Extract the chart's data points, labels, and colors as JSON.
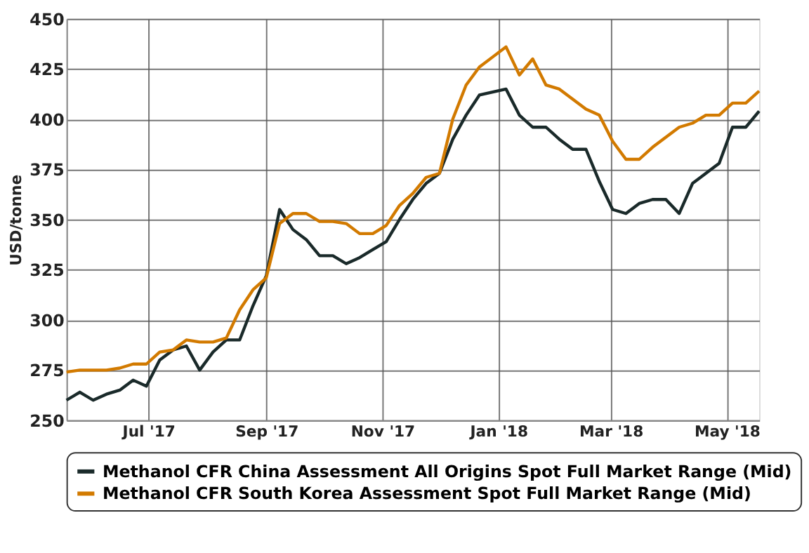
{
  "chart_data": {
    "type": "line",
    "ylabel": "USD/tonne",
    "x": [
      "2017-05-19",
      "2017-05-26",
      "2017-06-02",
      "2017-06-09",
      "2017-06-16",
      "2017-06-23",
      "2017-06-30",
      "2017-07-07",
      "2017-07-14",
      "2017-07-21",
      "2017-07-28",
      "2017-08-04",
      "2017-08-11",
      "2017-08-18",
      "2017-08-25",
      "2017-09-01",
      "2017-09-08",
      "2017-09-15",
      "2017-09-22",
      "2017-09-29",
      "2017-10-06",
      "2017-10-13",
      "2017-10-20",
      "2017-10-27",
      "2017-11-03",
      "2017-11-10",
      "2017-11-17",
      "2017-11-24",
      "2017-12-01",
      "2017-12-08",
      "2017-12-15",
      "2017-12-22",
      "2017-12-29",
      "2018-01-05",
      "2018-01-12",
      "2018-01-19",
      "2018-01-26",
      "2018-02-02",
      "2018-02-09",
      "2018-02-16",
      "2018-02-23",
      "2018-03-02",
      "2018-03-09",
      "2018-03-16",
      "2018-03-23",
      "2018-03-30",
      "2018-04-06",
      "2018-04-13",
      "2018-04-20",
      "2018-04-27",
      "2018-05-04",
      "2018-05-11",
      "2018-05-18"
    ],
    "series": [
      {
        "name": "Methanol CFR China Assessment All Origins Spot Full Market Range (Mid)",
        "color": "#1a2a2a",
        "values": [
          260,
          264,
          260,
          263,
          265,
          270,
          267,
          280,
          285,
          287,
          275,
          284,
          290,
          290,
          307,
          322,
          355,
          345,
          340,
          332,
          332,
          328,
          331,
          335,
          339,
          350,
          360,
          368,
          373,
          390,
          402,
          412,
          413.5,
          415,
          402,
          396,
          396,
          390,
          385,
          385,
          369,
          355,
          353,
          358,
          360,
          360,
          353,
          368,
          373,
          378,
          396,
          396,
          404
        ]
      },
      {
        "name": "Methanol CFR South Korea Assessment Spot Full Market Range (Mid)",
        "color": "#d27a00",
        "values": [
          274,
          275,
          275,
          275,
          276,
          278,
          278,
          284,
          285,
          290,
          289,
          289,
          291,
          305,
          315,
          321,
          348,
          353,
          353,
          349,
          349,
          348,
          343,
          343,
          347,
          357,
          363,
          371,
          373,
          400,
          417,
          426,
          431,
          436,
          422,
          430,
          417,
          415,
          410,
          405,
          402,
          389,
          380,
          380,
          386,
          391,
          396,
          398,
          402,
          402,
          408,
          408,
          414
        ]
      }
    ],
    "xlim": [
      "2017-05-19",
      "2018-05-18"
    ],
    "xticks": [
      {
        "value": "2017-07-01",
        "label": "Jul '17"
      },
      {
        "value": "2017-09-01",
        "label": "Sep '17"
      },
      {
        "value": "2017-11-01",
        "label": "Nov '17"
      },
      {
        "value": "2018-01-01",
        "label": "Jan '18"
      },
      {
        "value": "2018-03-01",
        "label": "Mar '18"
      },
      {
        "value": "2018-05-01",
        "label": "May '18"
      }
    ],
    "ylim": [
      250,
      450
    ],
    "yticks": [
      250,
      275,
      300,
      325,
      350,
      375,
      400,
      425,
      450
    ],
    "grid": true,
    "legend": "bottom",
    "marker": "none",
    "line_style": "solid"
  }
}
